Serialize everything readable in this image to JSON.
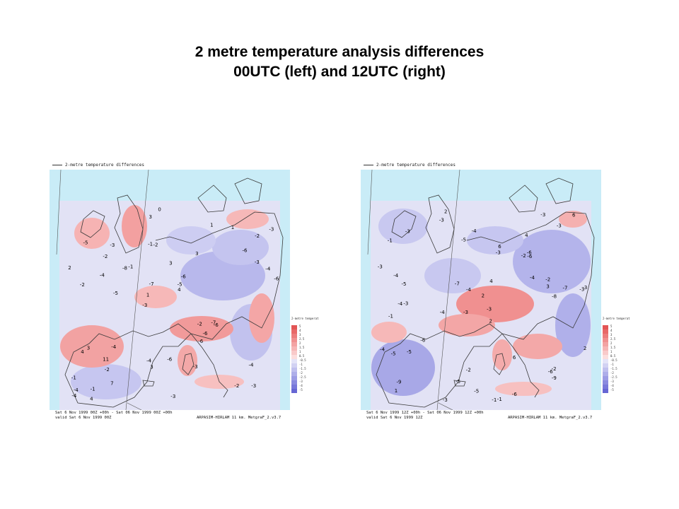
{
  "title": {
    "line1": "2 metre temperature analysis differences",
    "line2": "00UTC (left) and 12UTC (right)"
  },
  "colors": {
    "sea": "#c9ecf7",
    "background_field": "#e2e2f5",
    "warm": "#f08080",
    "cold": "#9a9ae0",
    "coast": "#3a3a3a"
  },
  "maps": [
    {
      "id": "left",
      "legend_title": "2-metre temperature differences",
      "colorbar_title": "2-metre temperat",
      "colorbar_labels": [
        "5",
        "4",
        "3",
        "2.5",
        "2",
        "1.5",
        "1",
        "0.5",
        "-0.5",
        "-1",
        "-1.5",
        "-2",
        "-2.5",
        "-3",
        "-4",
        "-5"
      ],
      "footer_line1": "Sat  6 Nov 1999 00Z +00h   -  Sat 06 Nov 1999 00Z +00h",
      "footer_line2": "valid  Sat  6 Nov 1999 00Z",
      "footer_credit": "ARPASIM-HIRLAM 11 km. MetgraF_2.v3.7",
      "labels": [
        "-3",
        "-2",
        "-2",
        "-3",
        "3",
        "-1",
        "-1",
        "3",
        "3",
        "-1",
        "-1",
        "-2",
        "-2",
        "-6",
        "-6",
        "-5",
        "3",
        "-6",
        "-2",
        "-3",
        "1",
        "-4",
        "-7",
        "-3",
        "1",
        "-4",
        "-2",
        "-4",
        "-7",
        "-3",
        "-8",
        "-4",
        "-6",
        "7",
        "-4",
        "-5",
        "-4",
        "3",
        "4",
        "4",
        "-6",
        "-3",
        "-6",
        "-3",
        "11",
        "4",
        "-4",
        "-6",
        "1",
        "0",
        "-5",
        "2",
        "-2"
      ]
    },
    {
      "id": "right",
      "legend_title": "2-metre temperature differences",
      "colorbar_title": "2-metre temperat",
      "colorbar_labels": [
        "5",
        "4",
        "3",
        "2.5",
        "2",
        "1.5",
        "1",
        "0.5",
        "-0.5",
        "-1",
        "-1.5",
        "-2",
        "-2.5",
        "-3",
        "-4",
        "-5"
      ],
      "footer_line1": "Sat  6 Nov 1999 12Z +00h   -  Sat 06 Nov 1999 12Z +00h",
      "footer_line2": "valid  Sat  6 Nov 1999 12Z",
      "footer_credit": "ARPASIM-HIRLAM 11 km. MetgraF_2.v3.7",
      "labels": [
        "2",
        "4",
        "-3",
        "-3",
        "2",
        "-3",
        "-1",
        "-2",
        "-1",
        "-3",
        "2",
        "1",
        "-3",
        "-4",
        "-1",
        "-1",
        "-2",
        "-3",
        "-4",
        "-6",
        "-5",
        "-4",
        "-3",
        "-7",
        "-4",
        "-4",
        "-4",
        "3",
        "-2",
        "-5",
        "-6",
        "6",
        "-5",
        "-7",
        "6",
        "2",
        "-2",
        "-5",
        "6",
        "-4",
        "-9",
        "-3",
        "-6",
        "-3",
        "-5",
        "-6",
        "-9",
        "-6",
        "-3",
        "-3",
        "-5",
        "-8",
        "4",
        "-3"
      ]
    }
  ]
}
